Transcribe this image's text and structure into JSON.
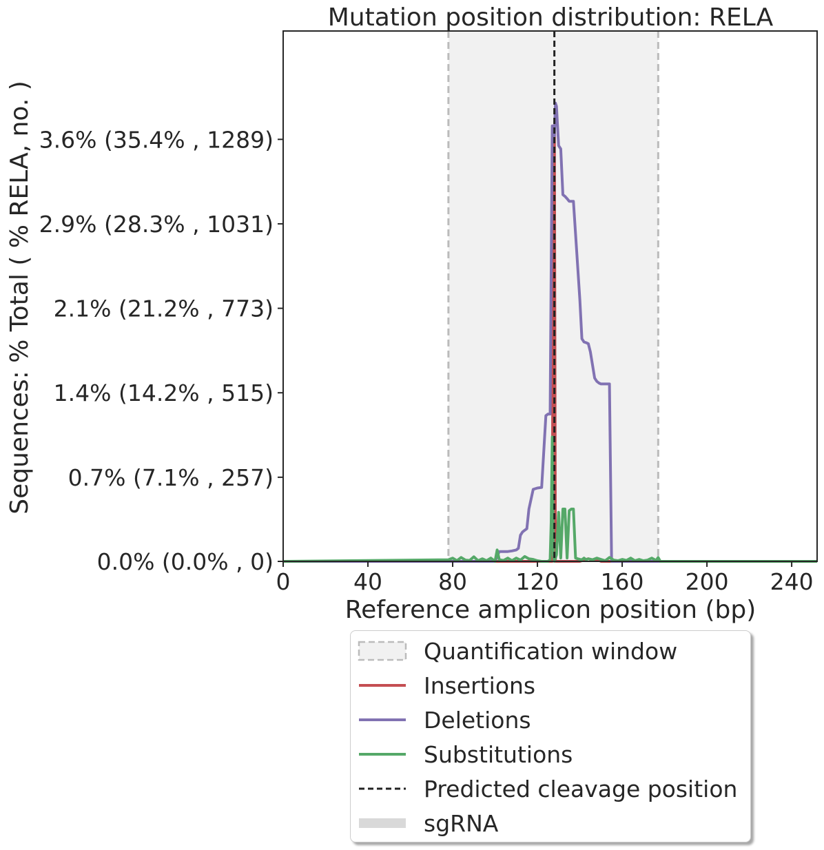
{
  "chart_data": {
    "type": "line",
    "title": "Mutation position distribution: RELA",
    "xlabel": "Reference amplicon position (bp)",
    "ylabel": "Sequences: % Total ( % RELA, no. )",
    "xlim": [
      0,
      252
    ],
    "ylim": [
      0,
      1620
    ],
    "xticks": [
      0,
      40,
      80,
      120,
      160,
      200,
      240
    ],
    "yticks": [
      {
        "value": 0,
        "label": "0.0% (0.0% , 0)"
      },
      {
        "value": 257,
        "label": "0.7% (7.1% , 257)"
      },
      {
        "value": 515,
        "label": "1.4% (14.2% , 515)"
      },
      {
        "value": 773,
        "label": "2.1% (21.2% , 773)"
      },
      {
        "value": 1031,
        "label": "2.9% (28.3% , 1031)"
      },
      {
        "value": 1289,
        "label": "3.6% (35.4% , 1289)"
      }
    ],
    "quantification_window": [
      78,
      177
    ],
    "cleavage_position": 128,
    "colors": {
      "insertions": "#c44e52",
      "deletions": "#8172b2",
      "substitutions": "#55a868",
      "cleavage": "#222222",
      "window_fill": "#f1f1f1",
      "window_edge": "#bbbbbb",
      "sgrna": "#d9d9d9"
    },
    "series": [
      {
        "name": "Insertions",
        "x": [
          0,
          126,
          127,
          127.5,
          128,
          128.5,
          129,
          130,
          135,
          140,
          144,
          146,
          148,
          150,
          252
        ],
        "values": [
          0,
          0,
          0,
          1330,
          1330,
          0,
          0,
          0,
          0,
          0,
          8,
          4,
          6,
          0,
          0
        ]
      },
      {
        "name": "Deletions",
        "x": [
          0,
          100,
          102,
          104,
          106,
          108,
          110,
          111,
          112,
          113,
          114,
          115,
          116,
          118,
          120,
          122,
          124,
          125,
          126,
          126.5,
          127,
          127.5,
          128,
          128.5,
          129,
          130,
          131,
          132,
          133,
          134,
          135,
          136,
          137,
          138,
          139,
          140,
          141,
          142,
          143,
          144,
          145,
          146,
          147,
          148,
          149,
          150,
          151,
          152,
          153,
          154,
          155,
          156,
          160,
          200,
          252
        ],
        "values": [
          0,
          0,
          30,
          30,
          30,
          32,
          35,
          40,
          80,
          90,
          95,
          100,
          160,
          220,
          224,
          226,
          445,
          450,
          450,
          890,
          1330,
          1300,
          1300,
          1400,
          1390,
          1270,
          1260,
          1120,
          1115,
          1108,
          1100,
          1100,
          1100,
          1000,
          900,
          800,
          680,
          670,
          668,
          665,
          640,
          600,
          560,
          550,
          545,
          542,
          542,
          542,
          542,
          542,
          0,
          0,
          0,
          0,
          0
        ]
      },
      {
        "name": "Substitutions",
        "x": [
          0,
          78,
          80,
          82,
          84,
          86,
          88,
          90,
          92,
          94,
          96,
          98,
          100,
          101,
          102,
          104,
          106,
          108,
          110,
          112,
          114,
          116,
          118,
          120,
          122,
          124,
          125,
          126,
          126.5,
          127,
          127.5,
          128,
          129,
          130,
          131,
          132,
          133,
          134,
          135,
          136,
          137,
          138,
          139,
          140,
          141,
          142,
          143,
          144,
          146,
          148,
          150,
          152,
          154,
          156,
          158,
          160,
          162,
          164,
          166,
          168,
          170,
          172,
          174,
          176,
          177,
          178,
          252
        ],
        "values": [
          0,
          5,
          10,
          2,
          12,
          4,
          3,
          14,
          2,
          8,
          2,
          10,
          0,
          35,
          5,
          3,
          10,
          2,
          10,
          4,
          15,
          8,
          6,
          2,
          0,
          0,
          0,
          5,
          120,
          380,
          20,
          0,
          20,
          150,
          10,
          160,
          160,
          10,
          155,
          160,
          160,
          10,
          8,
          6,
          5,
          10,
          5,
          8,
          5,
          10,
          6,
          2,
          12,
          4,
          2,
          6,
          3,
          10,
          2,
          6,
          2,
          4,
          10,
          3,
          12,
          0,
          0
        ]
      }
    ],
    "legend": {
      "position": "below",
      "entries": [
        "Quantification window",
        "Insertions",
        "Deletions",
        "Substitutions",
        "Predicted cleavage position",
        "sgRNA"
      ]
    }
  }
}
